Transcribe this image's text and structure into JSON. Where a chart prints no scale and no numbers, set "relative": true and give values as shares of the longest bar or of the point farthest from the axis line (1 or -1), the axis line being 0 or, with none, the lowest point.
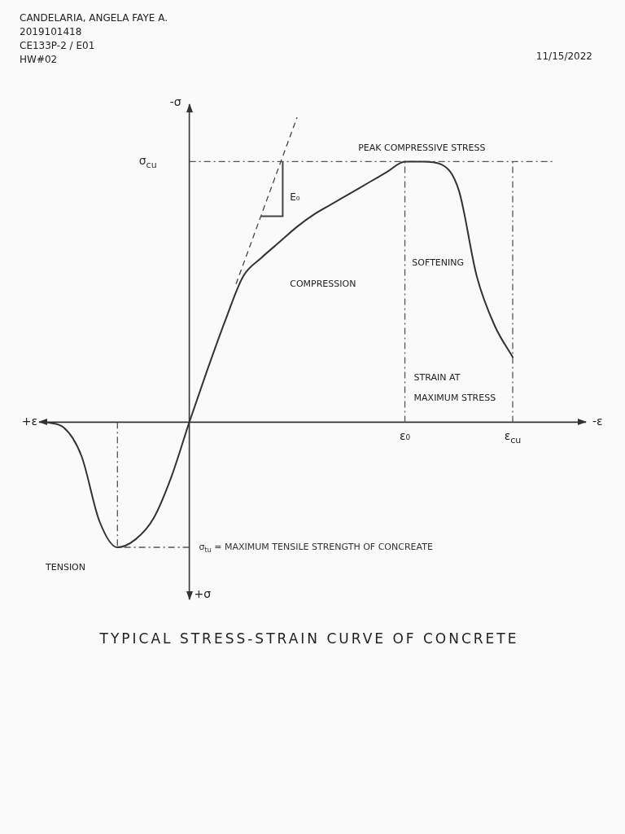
{
  "chart_data": {
    "type": "line",
    "title": "TYPICAL STRESS-STRAIN CURVE OF CONCRETE",
    "relative": true,
    "ylabel": "-σ",
    "categories": [
      null,
      null,
      null,
      null,
      null,
      null,
      null,
      null,
      null,
      null,
      null,
      null,
      null,
      null,
      null,
      null,
      null,
      null,
      null,
      null,
      "ε₀",
      null,
      null,
      null,
      null,
      null,
      "ε$_{cu}$"
    ],
    "values": [
      0,
      -0.02,
      -0.13,
      -0.38,
      -0.48,
      -0.45,
      -0.37,
      -0.21,
      0,
      0.2,
      0.39,
      0.56,
      0.63,
      0.69,
      0.75,
      0.8,
      0.84,
      0.88,
      0.92,
      0.96,
      1,
      1,
      0.99,
      0.89,
      0.56,
      0.37,
      0.25
    ],
    "color": "#333333",
    "legend": false,
    "marker": "none",
    "line_style": "solid",
    "ref_lines": [
      {
        "axis": "y",
        "value": 1,
        "label": "σ$_{cu}$",
        "color": "#555555",
        "line_style": "dashed"
      },
      {
        "axis": "y",
        "value": -0.48,
        "label": "σ$_{tu}$ = MAXIMUM TENSILE STRENGTH OF CONCREATE",
        "color": "#555555",
        "line_style": "dashed"
      },
      {
        "axis": "x",
        "value": "ε₀",
        "color": "#555555",
        "line_style": "dashed"
      },
      {
        "axis": "x",
        "value": "ε$_{cu}$",
        "color": "#555555",
        "line_style": "dashed"
      }
    ],
    "annotations": [
      "CANDELARIA, ANGELA FAYE A.",
      "2019101418",
      "CE133P-2 / E01",
      "HW#02",
      "11/15/2022",
      "E₀",
      "PEAK COMPRESSIVE STRESS",
      "COMPRESSION",
      "SOFTENING",
      "STRAIN AT",
      "MAXIMUM STRESS",
      "TENSION",
      "+ε",
      "+σ",
      "-ε"
    ]
  }
}
